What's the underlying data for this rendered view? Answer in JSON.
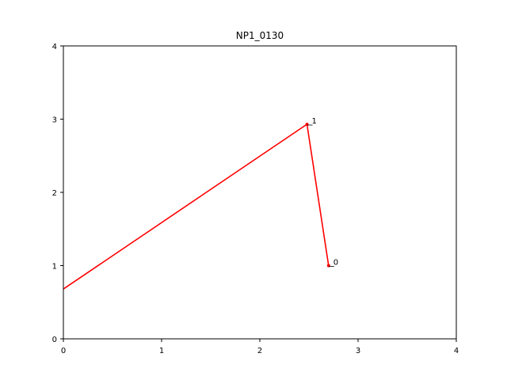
{
  "chart_data": {
    "type": "line",
    "title": "NP1_0130",
    "xlabel": "",
    "ylabel": "",
    "xlim": [
      0,
      4
    ],
    "ylim": [
      0,
      4
    ],
    "xticks": [
      0,
      1,
      2,
      3,
      4
    ],
    "yticks": [
      0,
      1,
      2,
      3,
      4
    ],
    "grid": false,
    "series": [
      {
        "color": "#ff0000",
        "x": [
          2.7,
          2.48,
          0
        ],
        "y": [
          1.0,
          2.93,
          0.68
        ]
      }
    ],
    "points": [
      {
        "label": "0",
        "x": 2.7,
        "y": 1.0
      },
      {
        "label": "1",
        "x": 2.48,
        "y": 2.93
      }
    ]
  }
}
